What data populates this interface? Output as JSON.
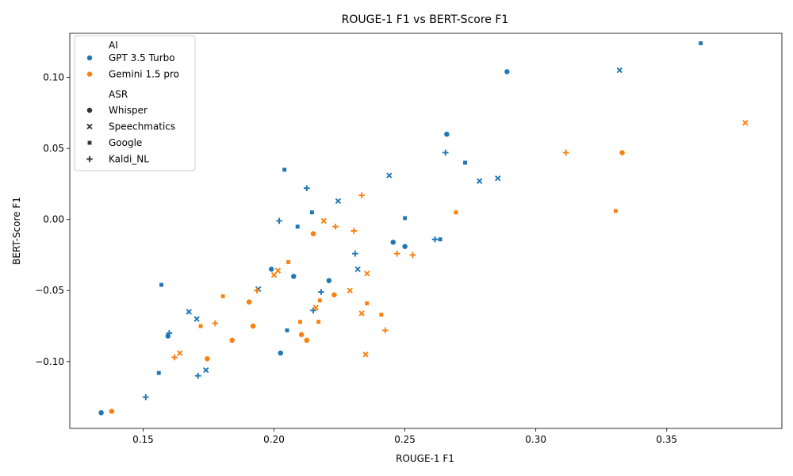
{
  "chart_data": {
    "type": "scatter",
    "title": "ROUGE-1 F1 vs BERT-Score F1",
    "xlabel": "ROUGE-1 F1",
    "ylabel": "BERT-Score F1",
    "xlim": [
      0.122,
      0.394
    ],
    "ylim": [
      -0.147,
      0.131
    ],
    "xticks": [
      0.15,
      0.2,
      0.25,
      0.3,
      0.35
    ],
    "xtick_labels": [
      "0.15",
      "0.20",
      "0.25",
      "0.30",
      "0.35"
    ],
    "yticks": [
      -0.1,
      -0.05,
      0.0,
      0.05,
      0.1
    ],
    "ytick_labels": [
      "−0.10",
      "−0.05",
      "0.00",
      "0.05",
      "0.10"
    ],
    "grid": false,
    "legend": {
      "placement": "top-left",
      "hue_title": "AI",
      "hue_entries": [
        {
          "label": "GPT 3.5 Turbo",
          "color": "#1f77b4"
        },
        {
          "label": "Gemini 1.5 pro",
          "color": "#ff7f0e"
        }
      ],
      "style_title": "ASR",
      "style_entries": [
        {
          "label": "Whisper",
          "marker": "circle"
        },
        {
          "label": "Speechmatics",
          "marker": "x"
        },
        {
          "label": "Google",
          "marker": "square"
        },
        {
          "label": "Kaldi_NL",
          "marker": "plus"
        }
      ]
    },
    "series": [
      {
        "ai": "GPT 3.5 Turbo",
        "asr": "Whisper",
        "color": "#1f77b4",
        "marker": "circle",
        "points": [
          [
            0.289,
            0.104
          ],
          [
            0.266,
            0.06
          ],
          [
            0.199,
            -0.035
          ],
          [
            0.2075,
            -0.04
          ],
          [
            0.221,
            -0.043
          ],
          [
            0.2455,
            -0.016
          ],
          [
            0.25,
            -0.019
          ],
          [
            0.1595,
            -0.082
          ],
          [
            0.2025,
            -0.094
          ],
          [
            0.134,
            -0.136
          ]
        ]
      },
      {
        "ai": "GPT 3.5 Turbo",
        "asr": "Speechmatics",
        "color": "#1f77b4",
        "marker": "x",
        "points": [
          [
            0.332,
            0.105
          ],
          [
            0.244,
            0.031
          ],
          [
            0.2785,
            0.027
          ],
          [
            0.2855,
            0.029
          ],
          [
            0.2245,
            0.013
          ],
          [
            0.232,
            -0.035
          ],
          [
            0.1675,
            -0.065
          ],
          [
            0.1705,
            -0.07
          ],
          [
            0.174,
            -0.106
          ],
          [
            0.194,
            -0.049
          ]
        ]
      },
      {
        "ai": "GPT 3.5 Turbo",
        "asr": "Google",
        "color": "#1f77b4",
        "marker": "square",
        "points": [
          [
            0.363,
            0.124
          ],
          [
            0.273,
            0.04
          ],
          [
            0.204,
            0.035
          ],
          [
            0.2145,
            0.005
          ],
          [
            0.25,
            0.001
          ],
          [
            0.209,
            -0.005
          ],
          [
            0.2635,
            -0.014
          ],
          [
            0.157,
            -0.046
          ],
          [
            0.205,
            -0.078
          ],
          [
            0.156,
            -0.108
          ]
        ]
      },
      {
        "ai": "GPT 3.5 Turbo",
        "asr": "Kaldi_NL",
        "color": "#1f77b4",
        "marker": "plus",
        "points": [
          [
            0.2655,
            0.047
          ],
          [
            0.2125,
            0.022
          ],
          [
            0.202,
            -0.001
          ],
          [
            0.2615,
            -0.014
          ],
          [
            0.231,
            -0.024
          ],
          [
            0.218,
            -0.051
          ],
          [
            0.215,
            -0.064
          ],
          [
            0.16,
            -0.08
          ],
          [
            0.171,
            -0.11
          ],
          [
            0.151,
            -0.125
          ]
        ]
      },
      {
        "ai": "Gemini 1.5 pro",
        "asr": "Whisper",
        "color": "#ff7f0e",
        "marker": "circle",
        "points": [
          [
            0.333,
            0.047
          ],
          [
            0.215,
            -0.01
          ],
          [
            0.223,
            -0.053
          ],
          [
            0.1905,
            -0.058
          ],
          [
            0.192,
            -0.075
          ],
          [
            0.2105,
            -0.081
          ],
          [
            0.184,
            -0.085
          ],
          [
            0.2125,
            -0.085
          ],
          [
            0.1745,
            -0.098
          ],
          [
            0.138,
            -0.135
          ]
        ]
      },
      {
        "ai": "Gemini 1.5 pro",
        "asr": "Speechmatics",
        "color": "#ff7f0e",
        "marker": "x",
        "points": [
          [
            0.38,
            0.068
          ],
          [
            0.219,
            -0.001
          ],
          [
            0.2355,
            -0.038
          ],
          [
            0.2,
            -0.039
          ],
          [
            0.2015,
            -0.036
          ],
          [
            0.229,
            -0.05
          ],
          [
            0.216,
            -0.062
          ],
          [
            0.2335,
            -0.066
          ],
          [
            0.164,
            -0.094
          ],
          [
            0.235,
            -0.095
          ]
        ]
      },
      {
        "ai": "Gemini 1.5 pro",
        "asr": "Google",
        "color": "#ff7f0e",
        "marker": "square",
        "points": [
          [
            0.3305,
            0.006
          ],
          [
            0.2695,
            0.005
          ],
          [
            0.2055,
            -0.03
          ],
          [
            0.1805,
            -0.054
          ],
          [
            0.2175,
            -0.057
          ],
          [
            0.2355,
            -0.059
          ],
          [
            0.241,
            -0.067
          ],
          [
            0.21,
            -0.072
          ],
          [
            0.217,
            -0.072
          ],
          [
            0.172,
            -0.075
          ]
        ]
      },
      {
        "ai": "Gemini 1.5 pro",
        "asr": "Kaldi_NL",
        "color": "#ff7f0e",
        "marker": "plus",
        "points": [
          [
            0.3115,
            0.047
          ],
          [
            0.2335,
            0.017
          ],
          [
            0.2235,
            -0.005
          ],
          [
            0.2305,
            -0.008
          ],
          [
            0.247,
            -0.024
          ],
          [
            0.253,
            -0.025
          ],
          [
            0.1935,
            -0.05
          ],
          [
            0.1775,
            -0.073
          ],
          [
            0.2425,
            -0.078
          ],
          [
            0.162,
            -0.097
          ]
        ]
      }
    ]
  }
}
